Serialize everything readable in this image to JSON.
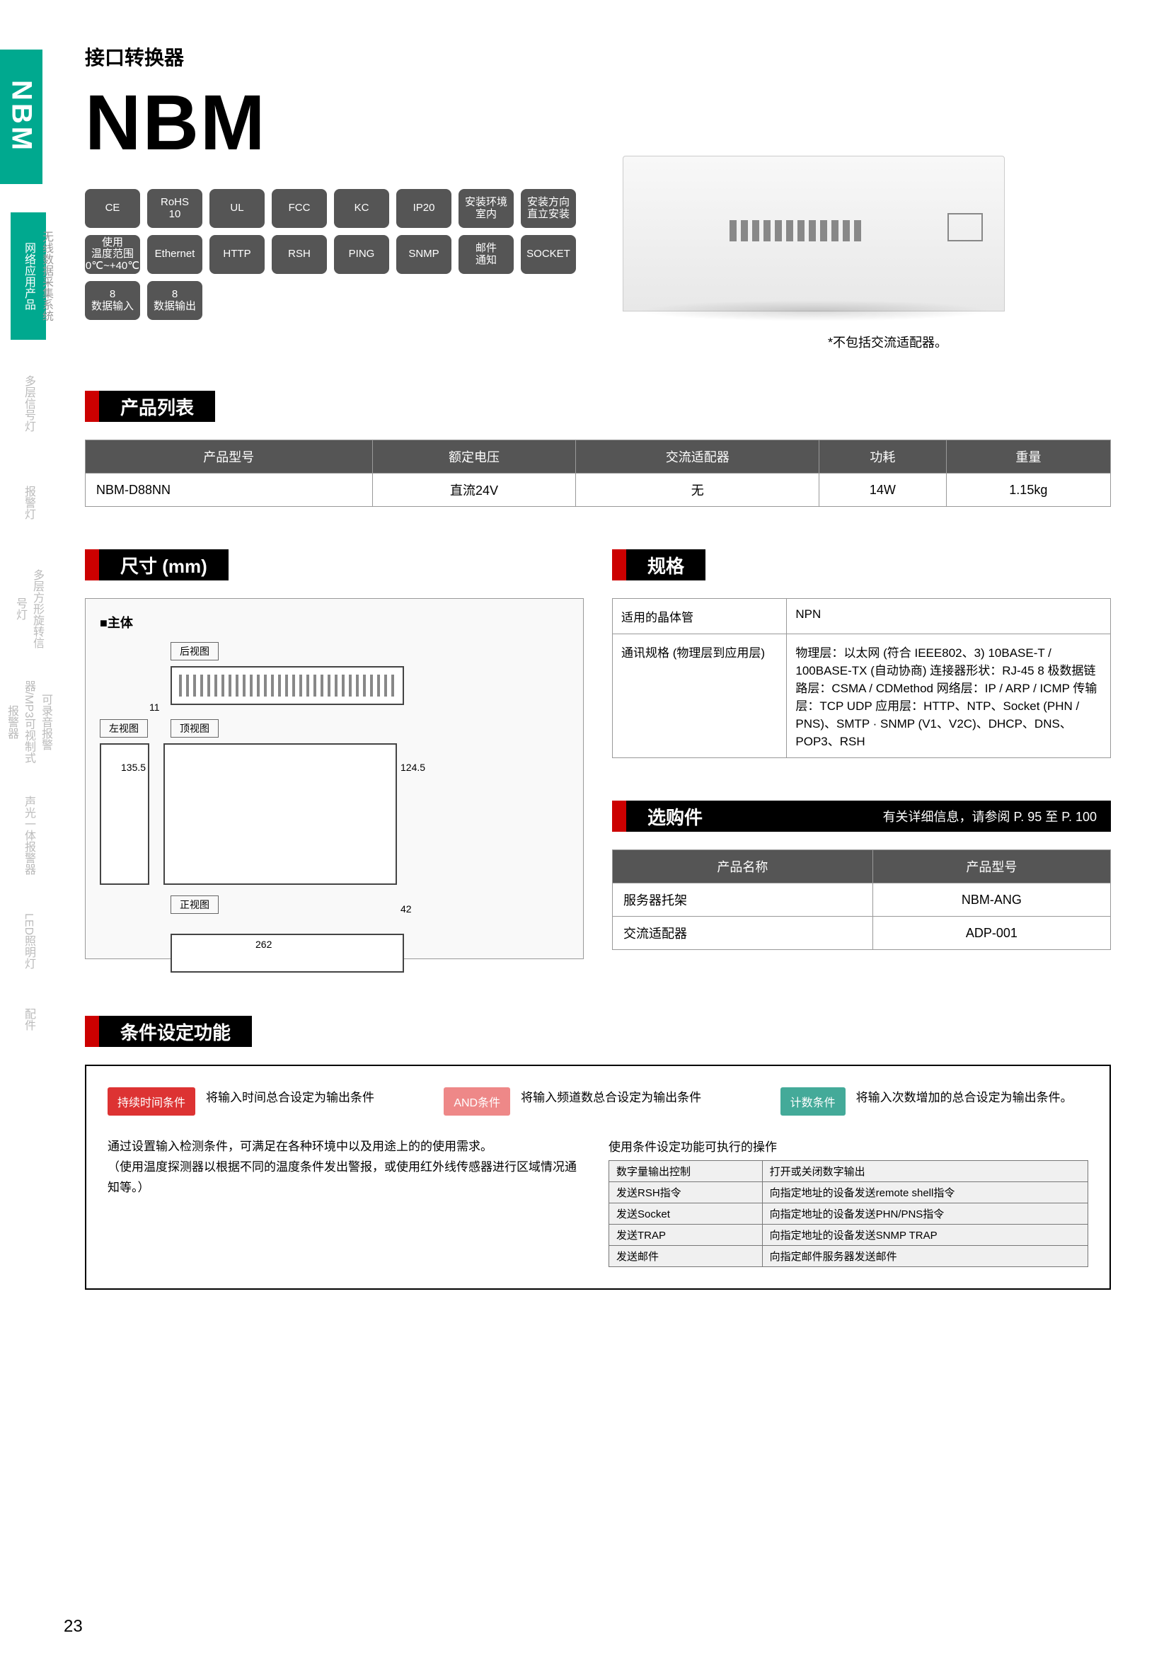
{
  "sidebar": {
    "main": "NBM",
    "items": [
      "网络应用产品",
      "无线数据采集系统",
      "多层信号灯",
      "报警灯",
      "多层方形旋转信号灯",
      "可录音报警器/MP3可视制式报警器",
      "声光一体报警器",
      "LED照明灯",
      "配件"
    ]
  },
  "header": {
    "category": "接口转换器",
    "title": "NBM"
  },
  "badges": [
    [
      "CE"
    ],
    [
      "RoHS",
      "10"
    ],
    [
      "UL"
    ],
    [
      "FCC"
    ],
    [
      "KC"
    ],
    [
      "IP20"
    ],
    [
      "安装环境",
      "室内"
    ],
    [
      "安装方向",
      "直立安装"
    ],
    [
      "使用",
      "温度范围",
      "0℃~+40℃"
    ],
    [
      "Ethernet"
    ],
    [
      "HTTP"
    ],
    [
      "RSH"
    ],
    [
      "PING"
    ],
    [
      "SNMP"
    ],
    [
      "邮件",
      "通知"
    ],
    [
      "SOCKET"
    ],
    [
      "8",
      "数据输入"
    ],
    [
      "8",
      "数据输出"
    ]
  ],
  "note": "*不包括交流适配器。",
  "sec_product": {
    "title": "产品列表",
    "cols": [
      "产品型号",
      "额定电压",
      "交流适配器",
      "功耗",
      "重量"
    ],
    "row": [
      "NBM-D88NN",
      "直流24V",
      "无",
      "14W",
      "1.15kg"
    ]
  },
  "sec_dim": {
    "title": "尺寸 (mm)",
    "body_label": "■主体",
    "views": {
      "rear": "后视图",
      "left": "左视图",
      "top": "顶视图",
      "front": "正视图"
    },
    "nums": {
      "h": "11",
      "h2": "135.5",
      "h3": "124.5",
      "w": "262",
      "d": "42"
    }
  },
  "sec_spec": {
    "title": "规格",
    "rows": [
      [
        "适用的晶体管",
        "NPN"
      ],
      [
        "通讯规格 (物理层到应用层)",
        "物理层：以太网 (符合 IEEE802、3) 10BASE-T / 100BASE-TX (自动协商) 连接器形状：RJ-45 8 极数据链路层：CSMA / CDMethod 网络层：IP / ARP / ICMP 传输层：TCP UDP 应用层：HTTP、NTP、Socket (PHN / PNS)、SMTP · SNMP (V1、V2C)、DHCP、DNS、POP3、RSH"
      ]
    ]
  },
  "sec_opt": {
    "title": "选购件",
    "note": "有关详细信息，请参阅 P. 95 至 P. 100",
    "cols": [
      "产品名称",
      "产品型号"
    ],
    "rows": [
      [
        "服务器托架",
        "NBM-ANG"
      ],
      [
        "交流适配器",
        "ADP-001"
      ]
    ]
  },
  "sec_cond": {
    "title": "条件设定功能",
    "items": [
      {
        "btn": "持续时间条件",
        "cls": "btn-r",
        "txt": "将输入时间总合设定为输出条件"
      },
      {
        "btn": "AND条件",
        "cls": "btn-o",
        "txt": "将输入频道数总合设定为输出条件"
      },
      {
        "btn": "计数条件",
        "cls": "btn-g",
        "txt": "将输入次数增加的总合设定为输出条件。"
      }
    ],
    "desc": "通过设置输入检测条件，可满足在各种环境中以及用途上的的使用需求。\n（使用温度探测器以根据不同的温度条件发出警报，或使用红外线传感器进行区域情况通知等。）",
    "ops_title": "使用条件设定功能可执行的操作",
    "ops": [
      [
        "数字量输出控制",
        "打开或关闭数字输出"
      ],
      [
        "发送RSH指令",
        "向指定地址的设备发送remote shell指令"
      ],
      [
        "发送Socket",
        "向指定地址的设备发送PHN/PNS指令"
      ],
      [
        "发送TRAP",
        "向指定地址的设备发送SNMP TRAP"
      ],
      [
        "发送邮件",
        "向指定邮件服务器发送邮件"
      ]
    ]
  },
  "page": "23"
}
